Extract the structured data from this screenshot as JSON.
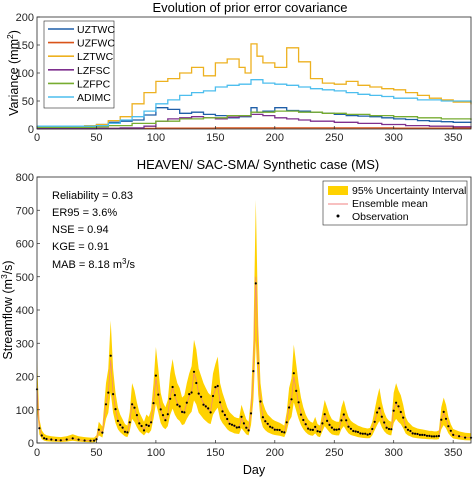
{
  "chart_data": [
    {
      "type": "line",
      "title": "Evolution of prior error covariance",
      "ylabel_main": "Variance (mm",
      "ylabel_sup": "2",
      "ylabel_tail": ")",
      "xlim": [
        0,
        365
      ],
      "ylim": [
        0,
        200
      ],
      "xticks": [
        0,
        50,
        100,
        150,
        200,
        250,
        300,
        350
      ],
      "yticks": [
        0,
        50,
        100,
        150,
        200
      ],
      "series": [
        {
          "name": "UZTWC",
          "color": "#1f5fa8",
          "x": [
            0,
            40,
            50,
            60,
            70,
            80,
            90,
            100,
            110,
            120,
            130,
            140,
            150,
            160,
            170,
            180,
            185,
            190,
            200,
            210,
            220,
            230,
            240,
            250,
            260,
            270,
            280,
            290,
            300,
            310,
            320,
            330,
            340,
            350,
            365
          ],
          "y": [
            2,
            4,
            8,
            12,
            14,
            16,
            25,
            38,
            35,
            28,
            30,
            26,
            24,
            20,
            22,
            38,
            30,
            32,
            38,
            33,
            32,
            30,
            28,
            26,
            24,
            23,
            22,
            20,
            18,
            17,
            15,
            14,
            13,
            12,
            11
          ]
        },
        {
          "name": "UZFWC",
          "color": "#d95319",
          "x": [
            0,
            50,
            100,
            150,
            200,
            250,
            300,
            365
          ],
          "y": [
            0.5,
            1,
            1.5,
            2,
            2,
            2,
            1.5,
            1
          ]
        },
        {
          "name": "LZTWC",
          "color": "#edb120",
          "x": [
            0,
            40,
            50,
            60,
            70,
            80,
            90,
            100,
            110,
            120,
            130,
            140,
            150,
            160,
            170,
            175,
            180,
            185,
            190,
            200,
            210,
            220,
            230,
            240,
            250,
            260,
            270,
            280,
            290,
            300,
            310,
            320,
            330,
            340,
            350,
            365
          ],
          "y": [
            5,
            6,
            8,
            15,
            22,
            45,
            65,
            85,
            90,
            100,
            110,
            95,
            118,
            125,
            110,
            100,
            152,
            130,
            118,
            110,
            145,
            120,
            90,
            82,
            80,
            85,
            78,
            75,
            72,
            70,
            65,
            60,
            55,
            52,
            48,
            44
          ]
        },
        {
          "name": "LZFSC",
          "color": "#7e2f8e",
          "x": [
            0,
            50,
            70,
            90,
            100,
            110,
            120,
            130,
            140,
            150,
            160,
            170,
            180,
            190,
            200,
            210,
            220,
            230,
            250,
            270,
            290,
            310,
            330,
            350,
            365
          ],
          "y": [
            0.5,
            1,
            2,
            5,
            14,
            18,
            20,
            22,
            20,
            18,
            21,
            23,
            26,
            24,
            20,
            18,
            16,
            14,
            12,
            10,
            8,
            6,
            5,
            4,
            3
          ]
        },
        {
          "name": "LZFPC",
          "color": "#77ac30",
          "x": [
            0,
            50,
            60,
            80,
            100,
            120,
            140,
            160,
            180,
            200,
            220,
            240,
            260,
            280,
            300,
            320,
            340,
            365
          ],
          "y": [
            3,
            4,
            6,
            10,
            14,
            18,
            20,
            24,
            30,
            32,
            30,
            28,
            26,
            24,
            22,
            20,
            18,
            16
          ]
        },
        {
          "name": "ADIMC",
          "color": "#4dbeee",
          "x": [
            0,
            50,
            60,
            70,
            80,
            90,
            100,
            110,
            120,
            130,
            140,
            150,
            160,
            170,
            180,
            190,
            200,
            210,
            220,
            230,
            240,
            250,
            260,
            270,
            280,
            290,
            300,
            320,
            340,
            365
          ],
          "y": [
            5,
            6,
            10,
            16,
            22,
            32,
            45,
            52,
            60,
            65,
            68,
            75,
            78,
            80,
            88,
            82,
            80,
            78,
            75,
            72,
            70,
            68,
            65,
            62,
            60,
            58,
            55,
            52,
            50,
            47
          ]
        }
      ]
    },
    {
      "type": "line",
      "title": "HEAVEN/ SAC-SMA/ Synthetic case (MS)",
      "xlabel": "Day",
      "ylabel_main": "Streamflow (m",
      "ylabel_sup": "3",
      "ylabel_tail": "/s)",
      "xlim": [
        0,
        365
      ],
      "ylim": [
        0,
        800
      ],
      "xticks": [
        0,
        50,
        100,
        150,
        200,
        250,
        300,
        350
      ],
      "yticks": [
        0,
        100,
        200,
        300,
        400,
        500,
        600,
        700,
        800
      ],
      "legend": [
        "95% Uncertainty Interval",
        "Ensemble mean",
        "Observation"
      ],
      "legend_location": "top-right",
      "colors": {
        "band": "#ffd200",
        "mean": "#f08080",
        "obs": "#000000"
      },
      "stats": [
        {
          "label": "Reliability = 0.83"
        },
        {
          "label": "ER95 = 3.6%"
        },
        {
          "label": "NSE = 0.94"
        },
        {
          "label": "KGE = 0.91"
        },
        {
          "label": "MAB = 8.18 m",
          "sup": "3",
          "tail": "/s"
        }
      ],
      "x": [
        0,
        2,
        4,
        6,
        8,
        12,
        16,
        20,
        25,
        30,
        35,
        40,
        45,
        48,
        50,
        52,
        55,
        58,
        60,
        62,
        64,
        66,
        68,
        70,
        72,
        74,
        76,
        78,
        80,
        82,
        84,
        86,
        88,
        90,
        92,
        94,
        96,
        98,
        100,
        102,
        104,
        106,
        108,
        110,
        112,
        114,
        116,
        118,
        120,
        122,
        124,
        126,
        128,
        130,
        132,
        134,
        136,
        138,
        140,
        142,
        144,
        146,
        148,
        150,
        152,
        154,
        156,
        158,
        160,
        162,
        164,
        166,
        168,
        170,
        172,
        174,
        176,
        178,
        180,
        182,
        184,
        186,
        188,
        190,
        192,
        194,
        196,
        198,
        200,
        202,
        204,
        206,
        208,
        210,
        212,
        214,
        216,
        218,
        220,
        222,
        224,
        226,
        228,
        230,
        232,
        234,
        236,
        238,
        240,
        242,
        244,
        246,
        248,
        250,
        252,
        254,
        256,
        258,
        260,
        262,
        264,
        266,
        268,
        270,
        272,
        274,
        276,
        278,
        280,
        282,
        284,
        286,
        288,
        290,
        292,
        294,
        296,
        298,
        300,
        302,
        304,
        306,
        308,
        310,
        312,
        314,
        316,
        318,
        320,
        322,
        324,
        326,
        328,
        330,
        332,
        334,
        336,
        338,
        340,
        342,
        344,
        346,
        348,
        350,
        355,
        360,
        365
      ],
      "mean": [
        170,
        45,
        22,
        15,
        12,
        10,
        9,
        8,
        10,
        14,
        10,
        8,
        7,
        7,
        12,
        40,
        30,
        120,
        150,
        250,
        150,
        100,
        70,
        55,
        45,
        35,
        32,
        60,
        120,
        105,
        80,
        60,
        50,
        40,
        55,
        50,
        65,
        120,
        195,
        150,
        100,
        80,
        70,
        85,
        140,
        170,
        140,
        120,
        110,
        90,
        95,
        120,
        140,
        155,
        210,
        190,
        150,
        135,
        120,
        110,
        100,
        95,
        140,
        160,
        175,
        120,
        100,
        85,
        70,
        60,
        55,
        50,
        48,
        47,
        75,
        60,
        45,
        40,
        90,
        210,
        500,
        240,
        120,
        80,
        65,
        55,
        50,
        45,
        42,
        40,
        38,
        35,
        32,
        60,
        110,
        130,
        200,
        160,
        120,
        90,
        70,
        55,
        45,
        40,
        38,
        50,
        35,
        32,
        60,
        85,
        70,
        55,
        45,
        42,
        40,
        40,
        70,
        85,
        65,
        50,
        42,
        38,
        35,
        32,
        30,
        28,
        27,
        26,
        27,
        40,
        65,
        90,
        110,
        80,
        60,
        48,
        42,
        40,
        100,
        120,
        105,
        95,
        75,
        50,
        40,
        35,
        30,
        28,
        26,
        25,
        24,
        23,
        22,
        21,
        21,
        20,
        20,
        22,
        70,
        90,
        75,
        50,
        35,
        25,
        20,
        17,
        16
      ]
    }
  ]
}
